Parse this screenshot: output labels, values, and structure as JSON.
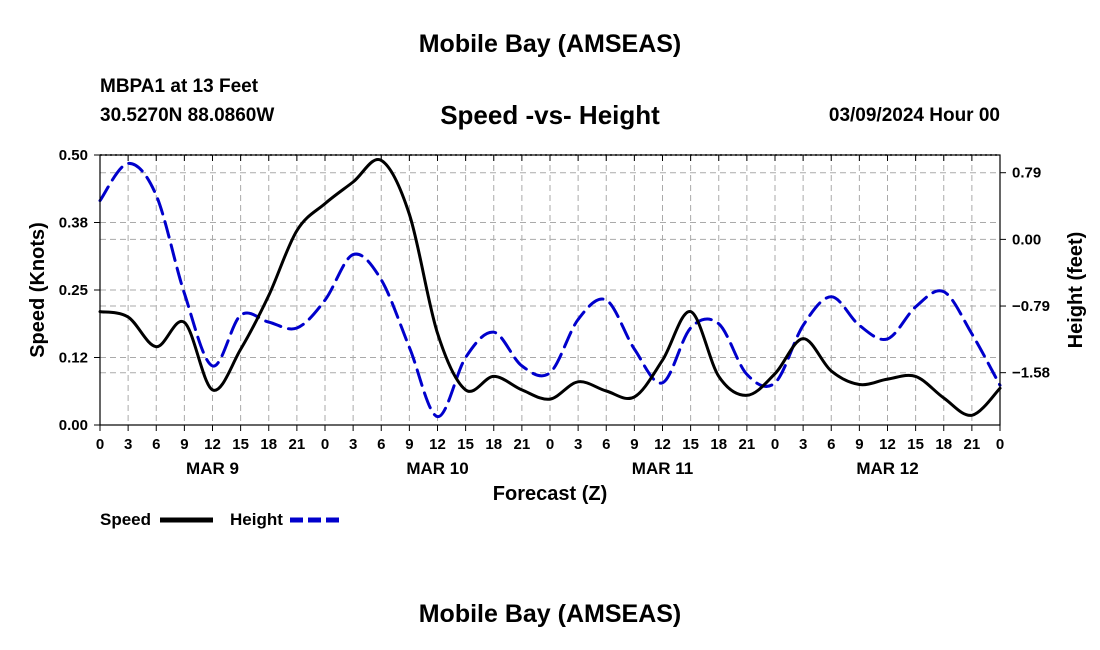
{
  "header": {
    "main_title": "Mobile Bay (AMSEAS)",
    "station": "MBPA1 at 13 Feet",
    "coordinates": "30.5270N  88.0860W",
    "subtitle": "Speed -vs- Height",
    "datetime": "03/09/2024 Hour 00"
  },
  "footer": {
    "title": "Mobile Bay (AMSEAS)"
  },
  "colors": {
    "speed": "#000000",
    "height": "#0000cc",
    "grid": "#aaaaaa"
  },
  "chart_data": {
    "type": "line",
    "title": "Speed -vs- Height",
    "xlabel": "Forecast (Z)",
    "ylabel_left": "Speed (Knots)",
    "ylabel_right": "Height (feet)",
    "xlim": [
      0,
      96
    ],
    "ylim_left": [
      0,
      0.5
    ],
    "ylim_right": [
      -2.2,
      1.0
    ],
    "grid": true,
    "legend_position": "bottom-left",
    "x_ticks": [
      0,
      3,
      6,
      9,
      12,
      15,
      18,
      21,
      24,
      27,
      30,
      33,
      36,
      39,
      42,
      45,
      48,
      51,
      54,
      57,
      60,
      63,
      66,
      69,
      72,
      75,
      78,
      81,
      84,
      87,
      90,
      93,
      96
    ],
    "x_tick_labels": [
      "0",
      "3",
      "6",
      "9",
      "12",
      "15",
      "18",
      "21",
      "0",
      "3",
      "6",
      "9",
      "12",
      "15",
      "18",
      "21",
      "0",
      "3",
      "6",
      "9",
      "12",
      "15",
      "18",
      "21",
      "0",
      "3",
      "6",
      "9",
      "12",
      "15",
      "18",
      "21",
      "0"
    ],
    "day_labels": [
      {
        "x": 12,
        "label": "MAR 9"
      },
      {
        "x": 36,
        "label": "MAR 10"
      },
      {
        "x": 60,
        "label": "MAR 11"
      },
      {
        "x": 84,
        "label": "MAR 12"
      }
    ],
    "y_left_ticks": [
      0,
      0.125,
      0.25,
      0.375,
      0.5
    ],
    "y_left_tick_labels": [
      "0.00",
      "0.12",
      "0.25",
      "0.38",
      "0.50"
    ],
    "y_right_ticks": [
      0.79,
      0.0,
      -0.79,
      -1.58
    ],
    "y_right_tick_labels": [
      "0.79",
      "0.00",
      "−0.79",
      "−1.58"
    ],
    "series": [
      {
        "name": "Speed",
        "axis": "left",
        "style": "solid",
        "x": [
          0,
          3,
          6,
          9,
          12,
          15,
          18,
          21,
          24,
          27,
          30,
          33,
          36,
          39,
          42,
          45,
          48,
          51,
          54,
          57,
          60,
          63,
          66,
          69,
          72,
          75,
          78,
          81,
          84,
          87,
          90,
          93,
          96
        ],
        "values": [
          0.21,
          0.2,
          0.145,
          0.19,
          0.065,
          0.14,
          0.24,
          0.36,
          0.41,
          0.45,
          0.49,
          0.39,
          0.17,
          0.065,
          0.09,
          0.065,
          0.048,
          0.08,
          0.063,
          0.052,
          0.12,
          0.21,
          0.09,
          0.055,
          0.095,
          0.16,
          0.1,
          0.075,
          0.085,
          0.09,
          0.05,
          0.018,
          0.068
        ]
      },
      {
        "name": "Height",
        "axis": "right",
        "style": "dashed",
        "x": [
          0,
          3,
          6,
          9,
          12,
          15,
          18,
          21,
          24,
          27,
          30,
          33,
          36,
          39,
          42,
          45,
          48,
          51,
          54,
          57,
          60,
          63,
          66,
          69,
          72,
          75,
          78,
          81,
          84,
          87,
          90,
          93,
          96
        ],
        "values": [
          0.46,
          0.9,
          0.52,
          -0.64,
          -1.5,
          -0.9,
          -0.98,
          -1.05,
          -0.72,
          -0.18,
          -0.48,
          -1.28,
          -2.1,
          -1.4,
          -1.1,
          -1.5,
          -1.58,
          -0.95,
          -0.72,
          -1.3,
          -1.7,
          -1.05,
          -1.0,
          -1.6,
          -1.7,
          -1.02,
          -0.68,
          -1.02,
          -1.18,
          -0.8,
          -0.62,
          -1.12,
          -1.73
        ]
      }
    ]
  }
}
